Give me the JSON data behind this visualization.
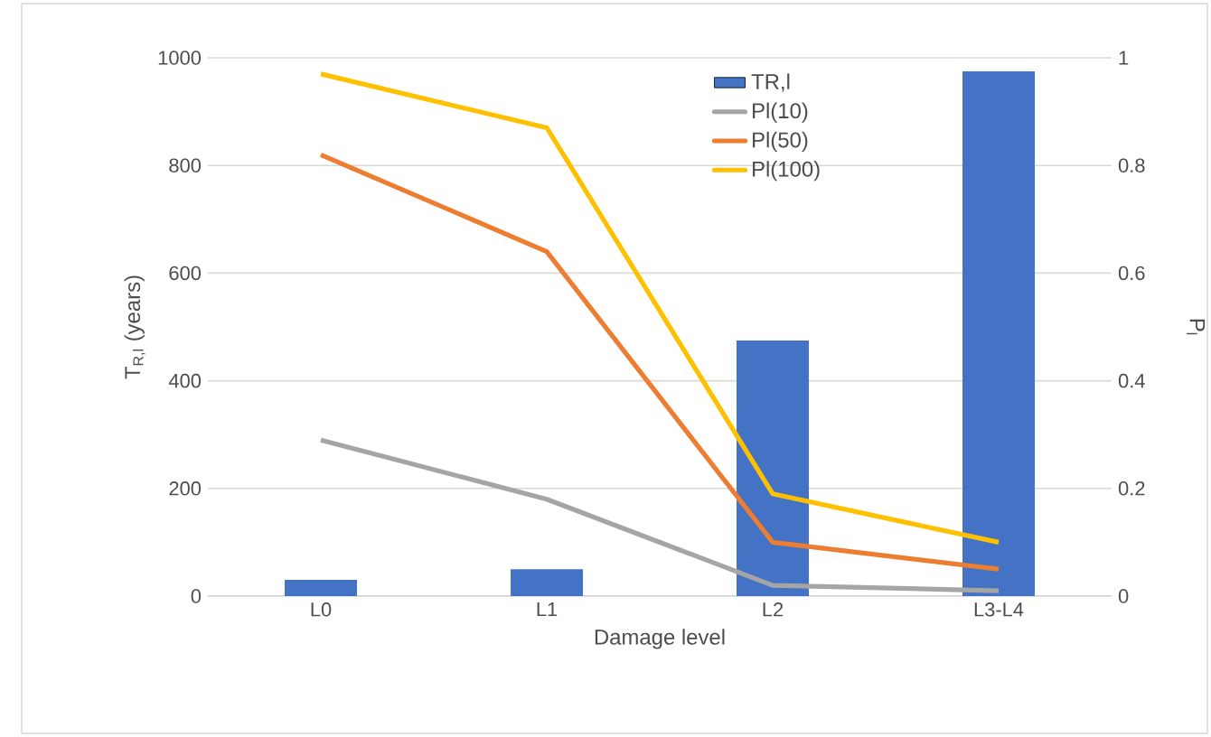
{
  "chart_data": {
    "type": "bar",
    "xlabel": "Damage level",
    "ylabel": "T$_{R,l}$ (years)",
    "y2label": "P$_{l}$",
    "categories": [
      "L0",
      "L1",
      "L2",
      "L3-L4"
    ],
    "series": [
      {
        "name": "TR,l",
        "color": "#4472c4",
        "values": [
          30,
          50,
          475,
          975
        ]
      },
      {
        "name": "Pl(10)",
        "type": "line",
        "axis": "y2",
        "color": "#a5a5a5",
        "values": [
          0.29,
          0.18,
          0.02,
          0.01
        ]
      },
      {
        "name": "Pl(50)",
        "type": "line",
        "axis": "y2",
        "color": "#ed7d31",
        "values": [
          0.82,
          0.64,
          0.1,
          0.05
        ]
      },
      {
        "name": "Pl(100)",
        "type": "line",
        "axis": "y2",
        "color": "#ffc000",
        "values": [
          0.97,
          0.87,
          0.19,
          0.1
        ]
      }
    ],
    "ylim": [
      0,
      1000
    ],
    "yticks": [
      0,
      200,
      400,
      600,
      800,
      1000
    ],
    "y2lim": [
      0,
      1
    ],
    "y2ticks": [
      0,
      {
        "value": 0.2,
        "label": "0.2"
      },
      {
        "value": 0.4,
        "label": "0.4"
      },
      {
        "value": 0.6,
        "label": "0.6"
      },
      {
        "value": 0.8,
        "label": "0.8"
      },
      1
    ],
    "grid": "y",
    "legend": "top",
    "marker": "none",
    "line_style": "solid"
  }
}
